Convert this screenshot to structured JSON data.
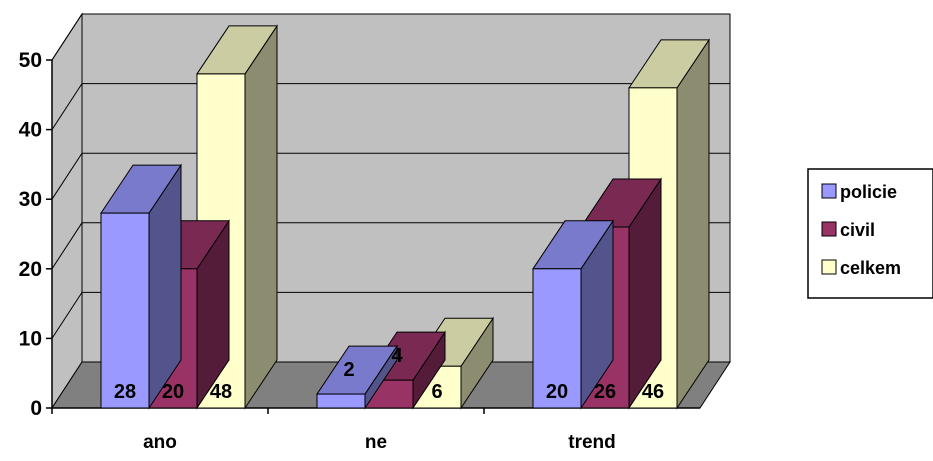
{
  "chart_data": {
    "type": "bar",
    "categories": [
      "ano",
      "ne",
      "trend"
    ],
    "series": [
      {
        "name": "policie",
        "values": [
          28,
          2,
          20
        ],
        "color": "#9999ff"
      },
      {
        "name": "civil",
        "values": [
          20,
          4,
          26
        ],
        "color": "#993366"
      },
      {
        "name": "celkem",
        "values": [
          48,
          6,
          46
        ],
        "color": "#ffffcc"
      }
    ],
    "ylim": [
      0,
      50
    ],
    "yticks": [
      "0",
      "10",
      "20",
      "30",
      "40",
      "50"
    ],
    "grid": true,
    "legend": "right",
    "style": "3d-clustered-column",
    "wall_color": "#c0c0c0",
    "floor_color": "#808080"
  }
}
